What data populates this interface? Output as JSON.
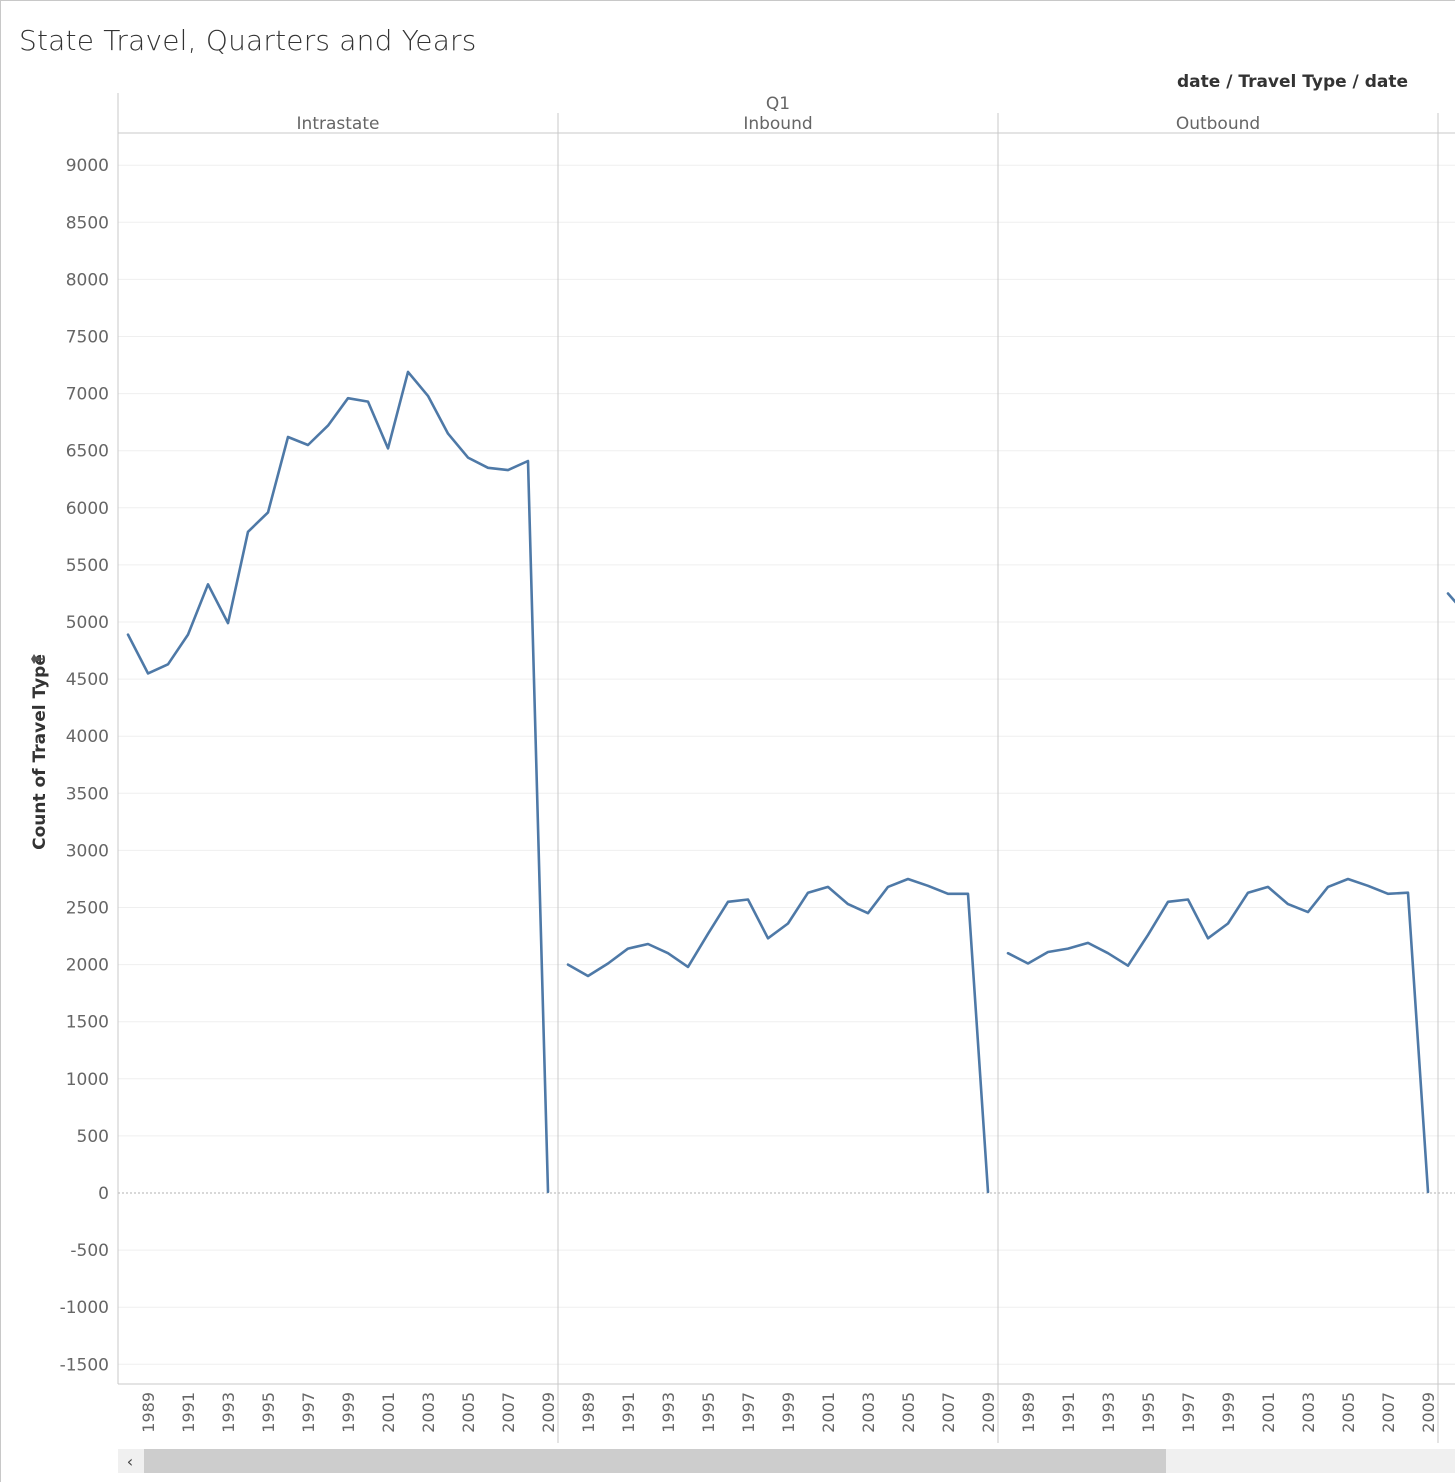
{
  "header": {
    "title": "State Travel, Quarters and Years",
    "column_path": "date / Travel Type / date"
  },
  "chart_data": {
    "type": "line",
    "title": "State Travel, Quarters and Years",
    "ylabel": "Count of Travel Type",
    "ylim": [
      -1700,
      9300
    ],
    "yticks": [
      9000,
      8500,
      8000,
      7500,
      7000,
      6500,
      6000,
      5500,
      5000,
      4500,
      4000,
      3500,
      3000,
      2500,
      2000,
      1500,
      1000,
      500,
      0,
      -500,
      -1000,
      -1500
    ],
    "xtick_labels": [
      "1989",
      "1991",
      "1993",
      "1995",
      "1997",
      "1999",
      "2001",
      "2003",
      "2005",
      "2007",
      "2009"
    ],
    "line_color": "#4e79a7",
    "quarter": "Q1",
    "panels": [
      {
        "name": "Intrastate",
        "x": [
          1988,
          1989,
          1990,
          1991,
          1992,
          1993,
          1994,
          1995,
          1996,
          1997,
          1998,
          1999,
          2000,
          2001,
          2002,
          2003,
          2004,
          2005,
          2006,
          2007,
          2008,
          2009
        ],
        "values": [
          4890,
          4550,
          4630,
          4890,
          5330,
          4990,
          5790,
          5960,
          6620,
          6550,
          6720,
          6960,
          6930,
          6520,
          7190,
          6980,
          6650,
          6440,
          6350,
          6330,
          6410,
          10
        ]
      },
      {
        "name": "Inbound",
        "x": [
          1988,
          1989,
          1990,
          1991,
          1992,
          1993,
          1994,
          1995,
          1996,
          1997,
          1998,
          1999,
          2000,
          2001,
          2002,
          2003,
          2004,
          2005,
          2006,
          2007,
          2008,
          2009
        ],
        "values": [
          2000,
          1900,
          2010,
          2140,
          2180,
          2100,
          1980,
          2270,
          2550,
          2570,
          2230,
          2360,
          2630,
          2680,
          2530,
          2450,
          2680,
          2750,
          2690,
          2620,
          2620,
          10
        ]
      },
      {
        "name": "Outbound",
        "x": [
          1988,
          1989,
          1990,
          1991,
          1992,
          1993,
          1994,
          1995,
          1996,
          1997,
          1998,
          1999,
          2000,
          2001,
          2002,
          2003,
          2004,
          2005,
          2006,
          2007,
          2008,
          2009
        ],
        "values": [
          2100,
          2010,
          2110,
          2140,
          2190,
          2100,
          1990,
          2260,
          2550,
          2570,
          2230,
          2360,
          2630,
          2680,
          2530,
          2460,
          2680,
          2750,
          2690,
          2620,
          2630,
          10
        ]
      }
    ],
    "partial_next_panel_values": [
      5250,
      5150
    ]
  },
  "scrollbar": {
    "left_arrow": "‹"
  }
}
